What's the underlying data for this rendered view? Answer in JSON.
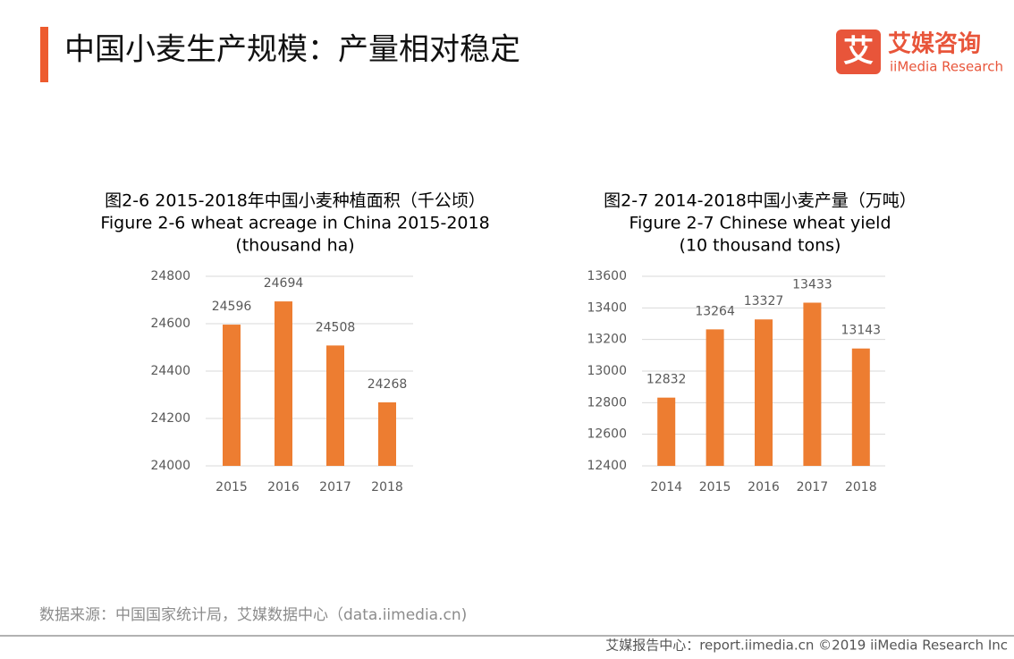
{
  "header": {
    "title": "中国小麦生产规模：产量相对稳定",
    "logo_mark": "艾",
    "logo_name": "艾媒咨询",
    "logo_sub": "iiMedia Research"
  },
  "chart_data": [
    {
      "type": "bar",
      "title": [
        "图2-6 2015-2018年中国小麦种植面积（千公顷）",
        "Figure 2-6 wheat acreage in China 2015-2018",
        "(thousand  ha)"
      ],
      "categories": [
        "2015",
        "2016",
        "2017",
        "2018"
      ],
      "values": [
        24596,
        24694,
        24508,
        24268
      ],
      "color": "#ed7d31",
      "ylim": [
        24000,
        24800
      ],
      "yticks": [
        24000,
        24200,
        24400,
        24600,
        24800
      ],
      "grid": true
    },
    {
      "type": "bar",
      "title": [
        "图2-7 2014-2018中国小麦产量（万吨）",
        "Figure 2-7 Chinese wheat yield",
        "(10 thousand  tons)"
      ],
      "categories": [
        "2014",
        "2015",
        "2016",
        "2017",
        "2018"
      ],
      "values": [
        12832,
        13264,
        13327,
        13433,
        13143
      ],
      "color": "#ed7d31",
      "ylim": [
        12400,
        13600
      ],
      "yticks": [
        12400,
        12600,
        12800,
        13000,
        13200,
        13400,
        13600
      ],
      "grid": true
    }
  ],
  "source": "数据来源：中国国家统计局，艾媒数据中心（data.iimedia.cn)",
  "footer": "艾媒报告中心：report.iimedia.cn  ©2019  iiMedia Research  Inc"
}
